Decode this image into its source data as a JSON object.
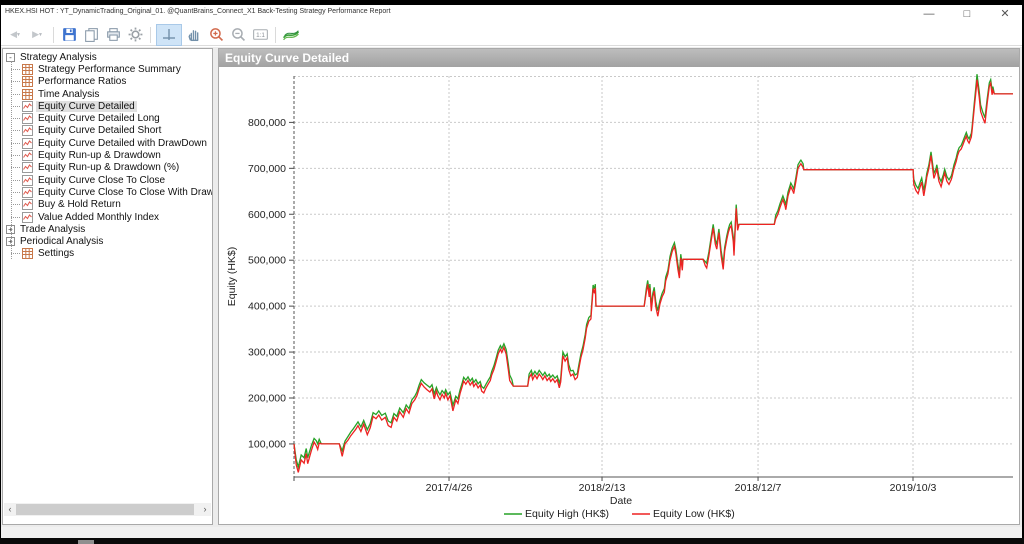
{
  "window": {
    "title": "HKEX.HSI HOT : YT_DynamicTrading_Original_01. @QuantBrains_Connect_X1 Back-Testing Strategy Performance Report",
    "controls": {
      "minimize": "—",
      "maximize": "□",
      "close": "✕"
    }
  },
  "toolbar": {
    "items": [
      "back",
      "forward",
      "save",
      "copy",
      "print",
      "settings",
      "crosshair-tool",
      "pan-tool",
      "zoom-in",
      "zoom-out",
      "one-to-one",
      "export-brand"
    ],
    "active_tool": "crosshair-tool"
  },
  "sidebar": {
    "nodes": [
      {
        "label": "Strategy Analysis",
        "type": "root",
        "toggle": "-"
      },
      {
        "label": "Strategy Performance Summary",
        "type": "child",
        "icon": "table"
      },
      {
        "label": "Performance Ratios",
        "type": "child",
        "icon": "table"
      },
      {
        "label": "Time Analysis",
        "type": "child",
        "icon": "table"
      },
      {
        "label": "Equity Curve Detailed",
        "type": "child",
        "icon": "chart",
        "selected": true
      },
      {
        "label": "Equity Curve Detailed Long",
        "type": "child",
        "icon": "chart"
      },
      {
        "label": "Equity Curve Detailed Short",
        "type": "child",
        "icon": "chart"
      },
      {
        "label": "Equity Curve Detailed with DrawDown",
        "type": "child",
        "icon": "chart"
      },
      {
        "label": "Equity Run-up & Drawdown",
        "type": "child",
        "icon": "chart"
      },
      {
        "label": "Equity Run-up & Drawdown (%)",
        "type": "child",
        "icon": "chart"
      },
      {
        "label": "Equity Curve Close To Close",
        "type": "child",
        "icon": "chart"
      },
      {
        "label": "Equity Curve Close To Close With Drawdown",
        "type": "child",
        "icon": "chart"
      },
      {
        "label": "Buy & Hold Return",
        "type": "child",
        "icon": "chart"
      },
      {
        "label": "Value Added Monthly Index",
        "type": "child",
        "icon": "chart"
      },
      {
        "label": "Trade Analysis",
        "type": "root",
        "toggle": "+"
      },
      {
        "label": "Periodical Analysis",
        "type": "root",
        "toggle": "+"
      },
      {
        "label": "Settings",
        "type": "child",
        "icon": "table"
      }
    ]
  },
  "chart_panel": {
    "header": "Equity Curve Detailed"
  },
  "chart_data": {
    "type": "line",
    "title": "Equity Curve Detailed",
    "xlabel": "Date",
    "ylabel": "Equity (HK$)",
    "grid": true,
    "legend_position": "bottom",
    "ylim": [
      28000,
      901000
    ],
    "y_ticks": [
      {
        "v": 100000,
        "label": "100,000"
      },
      {
        "v": 200000,
        "label": "200,000"
      },
      {
        "v": 300000,
        "label": "300,000"
      },
      {
        "v": 400000,
        "label": "400,000"
      },
      {
        "v": 500000,
        "label": "500,000"
      },
      {
        "v": 600000,
        "label": "600,000"
      },
      {
        "v": 700000,
        "label": "700,000"
      },
      {
        "v": 800000,
        "label": "800,000"
      },
      {
        "v": 900000,
        "label": ""
      }
    ],
    "x_ticks": [
      {
        "f": 0.2156,
        "label": "2017/4/26"
      },
      {
        "f": 0.4284,
        "label": "2018/2/13"
      },
      {
        "f": 0.6454,
        "label": "2018/12/7"
      },
      {
        "f": 0.8609,
        "label": "2019/10/3"
      }
    ],
    "series": [
      {
        "name": "Equity High (HK$)",
        "color": "#27a227"
      },
      {
        "name": "Equity Low (HK$)",
        "color": "#ee2222"
      }
    ],
    "points": [
      [
        0.0,
        100000,
        100000
      ],
      [
        0.003,
        55000,
        66000
      ],
      [
        0.006,
        38000,
        50000
      ],
      [
        0.01,
        65000,
        76000
      ],
      [
        0.014,
        58000,
        70000
      ],
      [
        0.017,
        79000,
        90000
      ],
      [
        0.019,
        57000,
        70000
      ],
      [
        0.024,
        85000,
        96000
      ],
      [
        0.028,
        104000,
        112000
      ],
      [
        0.031,
        96000,
        107000
      ],
      [
        0.033,
        88000,
        100000
      ],
      [
        0.035,
        102000,
        110000
      ],
      [
        0.038,
        100000,
        100000
      ],
      [
        0.063,
        100000,
        100000
      ],
      [
        0.067,
        73000,
        85000
      ],
      [
        0.071,
        100000,
        106000
      ],
      [
        0.075,
        108000,
        116000
      ],
      [
        0.079,
        118000,
        126000
      ],
      [
        0.082,
        124000,
        132000
      ],
      [
        0.086,
        132000,
        141000
      ],
      [
        0.089,
        140000,
        148000
      ],
      [
        0.093,
        127000,
        137000
      ],
      [
        0.097,
        143000,
        151000
      ],
      [
        0.102,
        120000,
        131000
      ],
      [
        0.106,
        135000,
        144000
      ],
      [
        0.11,
        160000,
        168000
      ],
      [
        0.114,
        155000,
        164000
      ],
      [
        0.118,
        163000,
        172000
      ],
      [
        0.122,
        152000,
        162000
      ],
      [
        0.127,
        158000,
        167000
      ],
      [
        0.131,
        140000,
        150000
      ],
      [
        0.135,
        136000,
        146000
      ],
      [
        0.139,
        158000,
        166000
      ],
      [
        0.143,
        150000,
        160000
      ],
      [
        0.147,
        170000,
        178000
      ],
      [
        0.152,
        158000,
        168000
      ],
      [
        0.156,
        177000,
        185000
      ],
      [
        0.16,
        167000,
        177000
      ],
      [
        0.164,
        188000,
        196000
      ],
      [
        0.168,
        196000,
        204000
      ],
      [
        0.171,
        205000,
        213000
      ],
      [
        0.174,
        220000,
        228000
      ],
      [
        0.177,
        232000,
        240000
      ],
      [
        0.181,
        224000,
        233000
      ],
      [
        0.185,
        218000,
        228000
      ],
      [
        0.189,
        213000,
        223000
      ],
      [
        0.192,
        220000,
        229000
      ],
      [
        0.195,
        198000,
        209000
      ],
      [
        0.198,
        215000,
        223000
      ],
      [
        0.2,
        205000,
        215000
      ],
      [
        0.203,
        196000,
        207000
      ],
      [
        0.206,
        208000,
        216000
      ],
      [
        0.209,
        200000,
        210000
      ],
      [
        0.211,
        210000,
        218000
      ],
      [
        0.214,
        196000,
        207000
      ],
      [
        0.217,
        205000,
        213000
      ],
      [
        0.221,
        172000,
        184000
      ],
      [
        0.225,
        196000,
        204000
      ],
      [
        0.228,
        188000,
        198000
      ],
      [
        0.231,
        210000,
        218000
      ],
      [
        0.234,
        225000,
        233000
      ],
      [
        0.236,
        237000,
        245000
      ],
      [
        0.239,
        230000,
        239000
      ],
      [
        0.242,
        238000,
        246000
      ],
      [
        0.245,
        228000,
        237000
      ],
      [
        0.248,
        235000,
        243000
      ],
      [
        0.25,
        225000,
        234000
      ],
      [
        0.253,
        232000,
        240000
      ],
      [
        0.256,
        222000,
        231000
      ],
      [
        0.259,
        228000,
        236000
      ],
      [
        0.261,
        215000,
        225000
      ],
      [
        0.264,
        211000,
        221000
      ],
      [
        0.267,
        222000,
        230000
      ],
      [
        0.27,
        230000,
        238000
      ],
      [
        0.273,
        238000,
        246000
      ],
      [
        0.275,
        250000,
        258000
      ],
      [
        0.278,
        262000,
        270000
      ],
      [
        0.281,
        278000,
        286000
      ],
      [
        0.284,
        296000,
        304000
      ],
      [
        0.287,
        306000,
        314000
      ],
      [
        0.289,
        299000,
        308000
      ],
      [
        0.292,
        310000,
        318000
      ],
      [
        0.295,
        296000,
        306000
      ],
      [
        0.298,
        262000,
        274000
      ],
      [
        0.3,
        238000,
        250000
      ],
      [
        0.303,
        230000,
        240000
      ],
      [
        0.305,
        226000,
        226000
      ],
      [
        0.325,
        226000,
        226000
      ],
      [
        0.327,
        244000,
        252000
      ],
      [
        0.33,
        252000,
        260000
      ],
      [
        0.332,
        240000,
        250000
      ],
      [
        0.335,
        250000,
        258000
      ],
      [
        0.338,
        242000,
        251000
      ],
      [
        0.341,
        252000,
        260000
      ],
      [
        0.344,
        246000,
        254000
      ],
      [
        0.346,
        240000,
        249000
      ],
      [
        0.349,
        248000,
        256000
      ],
      [
        0.352,
        238000,
        247000
      ],
      [
        0.355,
        244000,
        252000
      ],
      [
        0.357,
        236000,
        245000
      ],
      [
        0.36,
        242000,
        250000
      ],
      [
        0.363,
        234000,
        243000
      ],
      [
        0.366,
        240000,
        248000
      ],
      [
        0.369,
        222000,
        233000
      ],
      [
        0.371,
        235000,
        243000
      ],
      [
        0.374,
        292000,
        300000
      ],
      [
        0.377,
        280000,
        290000
      ],
      [
        0.38,
        288000,
        296000
      ],
      [
        0.382,
        262000,
        273000
      ],
      [
        0.385,
        248000,
        259000
      ],
      [
        0.388,
        252000,
        260000
      ],
      [
        0.391,
        240000,
        250000
      ],
      [
        0.394,
        245000,
        253000
      ],
      [
        0.396,
        262000,
        270000
      ],
      [
        0.399,
        288000,
        296000
      ],
      [
        0.402,
        305000,
        313000
      ],
      [
        0.405,
        330000,
        338000
      ],
      [
        0.407,
        352000,
        360000
      ],
      [
        0.41,
        367000,
        375000
      ],
      [
        0.413,
        372000,
        380000
      ],
      [
        0.416,
        438000,
        446000
      ],
      [
        0.418,
        428000,
        437000
      ],
      [
        0.419,
        440000,
        448000
      ],
      [
        0.42,
        400000,
        400000
      ],
      [
        0.487,
        400000,
        400000
      ],
      [
        0.49,
        430000,
        438000
      ],
      [
        0.492,
        448000,
        456000
      ],
      [
        0.494,
        420000,
        430000
      ],
      [
        0.495,
        440000,
        448000
      ],
      [
        0.497,
        389000,
        400000
      ],
      [
        0.499,
        420000,
        428000
      ],
      [
        0.501,
        433000,
        441000
      ],
      [
        0.503,
        400000,
        411000
      ],
      [
        0.506,
        378000,
        390000
      ],
      [
        0.509,
        405000,
        413000
      ],
      [
        0.512,
        420000,
        428000
      ],
      [
        0.515,
        430000,
        438000
      ],
      [
        0.517,
        455000,
        463000
      ],
      [
        0.52,
        470000,
        478000
      ],
      [
        0.523,
        500000,
        508000
      ],
      [
        0.526,
        519000,
        527000
      ],
      [
        0.529,
        530000,
        538000
      ],
      [
        0.531,
        515000,
        524000
      ],
      [
        0.534,
        480000,
        491000
      ],
      [
        0.536,
        461000,
        472000
      ],
      [
        0.538,
        505000,
        513000
      ],
      [
        0.54,
        478000,
        488000
      ],
      [
        0.541,
        502000,
        502000
      ],
      [
        0.569,
        502000,
        502000
      ],
      [
        0.572,
        488000,
        497000
      ],
      [
        0.574,
        483000,
        493000
      ],
      [
        0.577,
        510000,
        518000
      ],
      [
        0.58,
        540000,
        548000
      ],
      [
        0.583,
        570000,
        578000
      ],
      [
        0.586,
        535000,
        545000
      ],
      [
        0.588,
        524000,
        534000
      ],
      [
        0.591,
        560000,
        568000
      ],
      [
        0.594,
        510000,
        521000
      ],
      [
        0.597,
        480000,
        492000
      ],
      [
        0.599,
        520000,
        528000
      ],
      [
        0.602,
        545000,
        553000
      ],
      [
        0.604,
        560000,
        568000
      ],
      [
        0.606,
        570000,
        578000
      ],
      [
        0.608,
        575000,
        583000
      ],
      [
        0.611,
        540000,
        550000
      ],
      [
        0.612,
        510000,
        521000
      ],
      [
        0.615,
        613000,
        621000
      ],
      [
        0.616,
        590000,
        600000
      ],
      [
        0.617,
        565000,
        576000
      ],
      [
        0.619,
        578000,
        578000
      ],
      [
        0.668,
        578000,
        578000
      ],
      [
        0.67,
        590000,
        598000
      ],
      [
        0.673,
        600000,
        608000
      ],
      [
        0.676,
        615000,
        623000
      ],
      [
        0.679,
        628000,
        636000
      ],
      [
        0.68,
        632000,
        640000
      ],
      [
        0.683,
        618000,
        627000
      ],
      [
        0.684,
        610000,
        620000
      ],
      [
        0.687,
        640000,
        648000
      ],
      [
        0.69,
        655000,
        663000
      ],
      [
        0.691,
        660000,
        668000
      ],
      [
        0.694,
        650000,
        659000
      ],
      [
        0.695,
        645000,
        654000
      ],
      [
        0.698,
        672000,
        680000
      ],
      [
        0.701,
        700000,
        708000
      ],
      [
        0.704,
        708000,
        716000
      ],
      [
        0.705,
        710000,
        718000
      ],
      [
        0.708,
        702000,
        710000
      ],
      [
        0.709,
        697000,
        697000
      ],
      [
        0.861,
        697000,
        697000
      ],
      [
        0.862,
        665000,
        676000
      ],
      [
        0.865,
        652000,
        663000
      ],
      [
        0.868,
        645000,
        656000
      ],
      [
        0.871,
        660000,
        670000
      ],
      [
        0.873,
        670000,
        679000
      ],
      [
        0.876,
        640000,
        652000
      ],
      [
        0.879,
        668000,
        677000
      ],
      [
        0.88,
        680000,
        688000
      ],
      [
        0.883,
        700000,
        708000
      ],
      [
        0.886,
        728000,
        736000
      ],
      [
        0.889,
        690000,
        700000
      ],
      [
        0.89,
        678000,
        689000
      ],
      [
        0.893,
        692000,
        700000
      ],
      [
        0.894,
        700000,
        708000
      ],
      [
        0.897,
        672000,
        682000
      ],
      [
        0.9,
        660000,
        671000
      ],
      [
        0.903,
        678000,
        686000
      ],
      [
        0.905,
        690000,
        698000
      ],
      [
        0.908,
        672000,
        682000
      ],
      [
        0.911,
        665000,
        675000
      ],
      [
        0.914,
        675000,
        683000
      ],
      [
        0.915,
        680000,
        688000
      ],
      [
        0.918,
        700000,
        708000
      ],
      [
        0.921,
        715000,
        723000
      ],
      [
        0.923,
        728000,
        736000
      ],
      [
        0.925,
        737000,
        745000
      ],
      [
        0.928,
        742000,
        750000
      ],
      [
        0.93,
        750000,
        758000
      ],
      [
        0.933,
        762000,
        770000
      ],
      [
        0.935,
        770000,
        778000
      ],
      [
        0.937,
        760000,
        769000
      ],
      [
        0.939,
        755000,
        764000
      ],
      [
        0.942,
        768000,
        776000
      ],
      [
        0.943,
        780000,
        788000
      ],
      [
        0.946,
        830000,
        840000
      ],
      [
        0.949,
        875000,
        887000
      ],
      [
        0.95,
        893000,
        905000
      ],
      [
        0.953,
        855000,
        868000
      ],
      [
        0.955,
        824000,
        838000
      ],
      [
        0.958,
        810000,
        822000
      ],
      [
        0.961,
        798000,
        810000
      ],
      [
        0.964,
        840000,
        850000
      ],
      [
        0.967,
        878000,
        886000
      ],
      [
        0.969,
        885000,
        893000
      ],
      [
        0.971,
        860000,
        870000
      ],
      [
        0.972,
        870000,
        878000
      ],
      [
        0.974,
        862000,
        862000
      ],
      [
        1.0,
        862000,
        862000
      ]
    ]
  }
}
